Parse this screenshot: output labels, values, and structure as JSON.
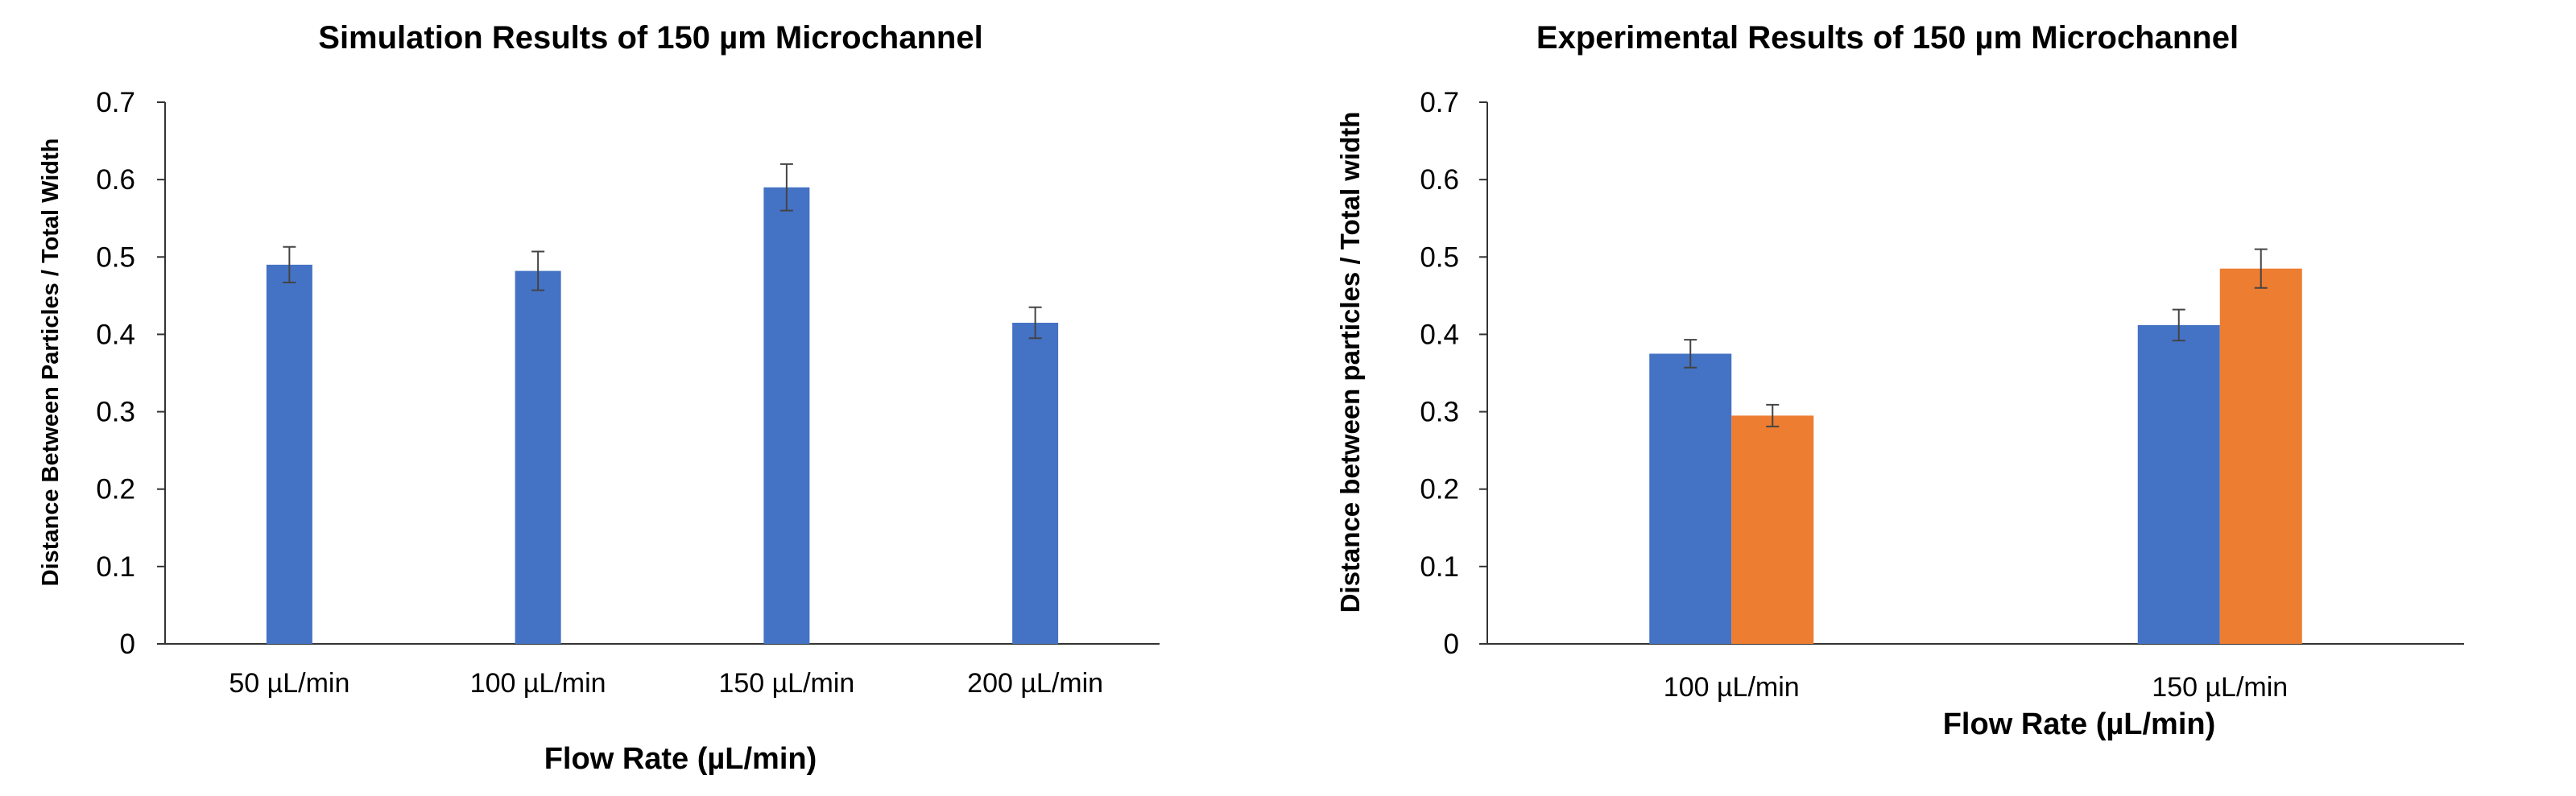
{
  "chart_data": [
    {
      "type": "bar",
      "title": "Simulation Results of 150 µm Microchannel",
      "xlabel": "Flow Rate  (µL/min)",
      "ylabel": "Distance Between Particles / Total Width",
      "ylim": [
        0,
        0.7
      ],
      "yticks": [
        "0",
        "0.1",
        "0.2",
        "0.3",
        "0.4",
        "0.5",
        "0.6",
        "0.7"
      ],
      "categories": [
        "50 µL/min",
        "100 µL/min",
        "150 µL/min",
        "200 µL/min"
      ],
      "series": [
        {
          "values": [
            0.49,
            0.482,
            0.59,
            0.415
          ],
          "errors": [
            0.023,
            0.025,
            0.03,
            0.02
          ],
          "color": "#4472C4"
        }
      ],
      "grid": false,
      "legend": "none"
    },
    {
      "type": "bar",
      "title": "Experimental Results of 150 µm Microchannel",
      "xlabel": "Flow Rate  (µL/min)",
      "ylabel": "Distance between particles / Total width",
      "ylim": [
        0,
        0.7
      ],
      "yticks": [
        "0",
        "0.1",
        "0.2",
        "0.3",
        "0.4",
        "0.5",
        "0.6",
        "0.7"
      ],
      "categories": [
        "100 µL/min",
        "150 µL/min"
      ],
      "series": [
        {
          "values": [
            0.375,
            0.412
          ],
          "errors": [
            0.018,
            0.02
          ],
          "color": "#4472C4"
        },
        {
          "values": [
            0.295,
            0.485
          ],
          "errors": [
            0.014,
            0.025
          ],
          "color": "#ED7D31"
        }
      ],
      "grid": false,
      "legend": "none"
    }
  ]
}
